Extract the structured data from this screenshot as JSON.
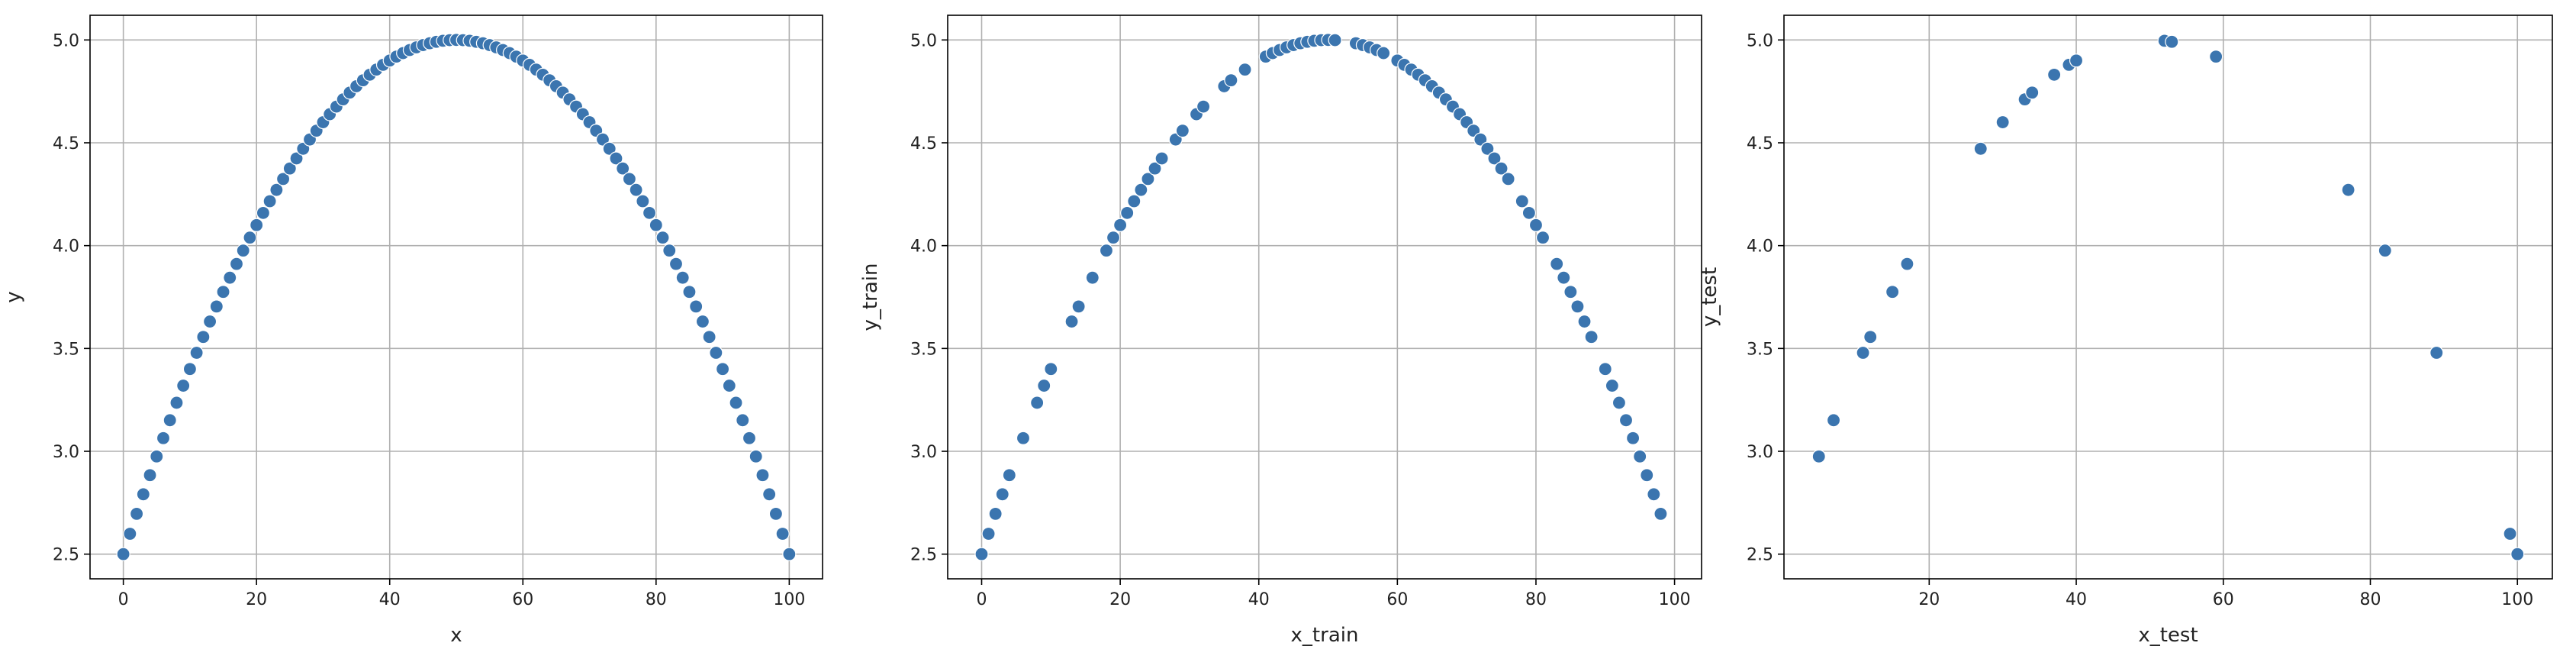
{
  "chart_data": [
    {
      "type": "scatter",
      "xlabel": "x",
      "ylabel": "y",
      "xlim": [
        -5,
        105
      ],
      "ylim": [
        2.38,
        5.12
      ],
      "xticks": [
        0,
        20,
        40,
        60,
        80,
        100
      ],
      "yticks": [
        2.5,
        3.0,
        3.5,
        4.0,
        4.5,
        5.0
      ],
      "xtick_labels": [
        "0",
        "20",
        "40",
        "60",
        "80",
        "100"
      ],
      "ytick_labels": [
        "2.5",
        "3.0",
        "3.5",
        "4.0",
        "4.5",
        "5.0"
      ],
      "grid": true,
      "point_color": "#3b75af",
      "x": [
        0,
        1,
        2,
        3,
        4,
        5,
        6,
        7,
        8,
        9,
        10,
        11,
        12,
        13,
        14,
        15,
        16,
        17,
        18,
        19,
        20,
        21,
        22,
        23,
        24,
        25,
        26,
        27,
        28,
        29,
        30,
        31,
        32,
        33,
        34,
        35,
        36,
        37,
        38,
        39,
        40,
        41,
        42,
        43,
        44,
        45,
        46,
        47,
        48,
        49,
        50,
        51,
        52,
        53,
        54,
        55,
        56,
        57,
        58,
        59,
        60,
        61,
        62,
        63,
        64,
        65,
        66,
        67,
        68,
        69,
        70,
        71,
        72,
        73,
        74,
        75,
        76,
        77,
        78,
        79,
        80,
        81,
        82,
        83,
        84,
        85,
        86,
        87,
        88,
        89,
        90,
        91,
        92,
        93,
        94,
        95,
        96,
        97,
        98,
        99,
        100
      ],
      "y": [
        2.5,
        2.599,
        2.696,
        2.791,
        2.884,
        2.975,
        3.064,
        3.151,
        3.236,
        3.319,
        3.4,
        3.479,
        3.556,
        3.631,
        3.704,
        3.775,
        3.844,
        3.911,
        3.976,
        4.039,
        4.1,
        4.159,
        4.216,
        4.271,
        4.324,
        4.375,
        4.424,
        4.471,
        4.516,
        4.559,
        4.6,
        4.639,
        4.676,
        4.711,
        4.744,
        4.775,
        4.804,
        4.831,
        4.856,
        4.879,
        4.9,
        4.919,
        4.936,
        4.951,
        4.964,
        4.975,
        4.984,
        4.991,
        4.996,
        4.999,
        5.0,
        4.999,
        4.996,
        4.991,
        4.984,
        4.975,
        4.964,
        4.951,
        4.936,
        4.919,
        4.9,
        4.879,
        4.856,
        4.831,
        4.804,
        4.775,
        4.744,
        4.711,
        4.676,
        4.639,
        4.6,
        4.559,
        4.516,
        4.471,
        4.424,
        4.375,
        4.324,
        4.271,
        4.216,
        4.159,
        4.1,
        4.039,
        3.976,
        3.911,
        3.844,
        3.775,
        3.704,
        3.631,
        3.556,
        3.479,
        3.4,
        3.319,
        3.236,
        3.151,
        3.064,
        2.975,
        2.884,
        2.791,
        2.696,
        2.599,
        2.5
      ]
    },
    {
      "type": "scatter",
      "xlabel": "x_train",
      "ylabel": "y_train",
      "xlim": [
        -4.9,
        103.9
      ],
      "ylim": [
        2.38,
        5.12
      ],
      "xticks": [
        0,
        20,
        40,
        60,
        80,
        100
      ],
      "yticks": [
        2.5,
        3.0,
        3.5,
        4.0,
        4.5,
        5.0
      ],
      "xtick_labels": [
        "0",
        "20",
        "40",
        "60",
        "80",
        "100"
      ],
      "ytick_labels": [
        "2.5",
        "3.0",
        "3.5",
        "4.0",
        "4.5",
        "5.0"
      ],
      "grid": true,
      "point_color": "#3b75af",
      "x": [
        0,
        1,
        2,
        3,
        4,
        6,
        8,
        9,
        10,
        13,
        14,
        16,
        18,
        19,
        20,
        21,
        22,
        23,
        24,
        25,
        26,
        28,
        29,
        31,
        32,
        35,
        36,
        38,
        41,
        42,
        43,
        44,
        45,
        46,
        47,
        48,
        49,
        50,
        51,
        54,
        55,
        56,
        57,
        58,
        60,
        61,
        62,
        63,
        64,
        65,
        66,
        67,
        68,
        69,
        70,
        71,
        72,
        73,
        74,
        75,
        76,
        78,
        79,
        80,
        81,
        83,
        84,
        85,
        86,
        87,
        88,
        90,
        91,
        92,
        93,
        94,
        95,
        96,
        97,
        98
      ],
      "y": [
        2.5,
        2.599,
        2.696,
        2.791,
        2.884,
        3.064,
        3.236,
        3.319,
        3.4,
        3.631,
        3.704,
        3.844,
        3.976,
        4.039,
        4.1,
        4.159,
        4.216,
        4.271,
        4.324,
        4.375,
        4.424,
        4.516,
        4.559,
        4.639,
        4.676,
        4.775,
        4.804,
        4.856,
        4.919,
        4.936,
        4.951,
        4.964,
        4.975,
        4.984,
        4.991,
        4.996,
        4.999,
        5.0,
        4.999,
        4.984,
        4.975,
        4.964,
        4.951,
        4.936,
        4.9,
        4.879,
        4.856,
        4.831,
        4.804,
        4.775,
        4.744,
        4.711,
        4.676,
        4.639,
        4.6,
        4.559,
        4.516,
        4.471,
        4.424,
        4.375,
        4.324,
        4.216,
        4.159,
        4.1,
        4.039,
        3.911,
        3.844,
        3.775,
        3.704,
        3.631,
        3.556,
        3.4,
        3.319,
        3.236,
        3.151,
        3.064,
        2.975,
        2.884,
        2.791,
        2.696
      ]
    },
    {
      "type": "scatter",
      "xlabel": "x_test",
      "ylabel": "y_test",
      "xlim": [
        0.25,
        104.75
      ],
      "ylim": [
        2.38,
        5.12
      ],
      "xticks": [
        20,
        40,
        60,
        80,
        100
      ],
      "yticks": [
        2.5,
        3.0,
        3.5,
        4.0,
        4.5,
        5.0
      ],
      "xtick_labels": [
        "20",
        "40",
        "60",
        "80",
        "100"
      ],
      "ytick_labels": [
        "2.5",
        "3.0",
        "3.5",
        "4.0",
        "4.5",
        "5.0"
      ],
      "grid": true,
      "point_color": "#3b75af",
      "x": [
        5,
        7,
        11,
        12,
        15,
        17,
        27,
        30,
        33,
        34,
        37,
        39,
        40,
        52,
        53,
        59,
        77,
        82,
        89,
        99,
        100
      ],
      "y": [
        2.975,
        3.151,
        3.479,
        3.556,
        3.775,
        3.911,
        4.471,
        4.6,
        4.711,
        4.744,
        4.831,
        4.879,
        4.9,
        4.996,
        4.991,
        4.919,
        4.271,
        3.976,
        3.479,
        2.599,
        2.5
      ]
    }
  ]
}
